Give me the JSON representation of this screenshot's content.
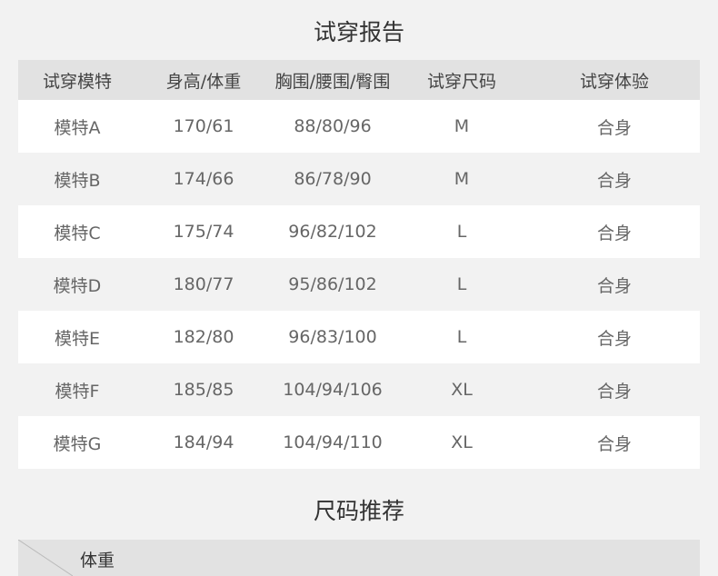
{
  "report": {
    "title": "试穿报告",
    "headers": [
      "试穿模特",
      "身高/体重",
      "胸围/腰围/臀围",
      "试穿尺码",
      "试穿体验"
    ],
    "rows": [
      [
        "模特A",
        "170/61",
        "88/80/96",
        "M",
        "合身"
      ],
      [
        "模特B",
        "174/66",
        "86/78/90",
        "M",
        "合身"
      ],
      [
        "模特C",
        "175/74",
        "96/82/102",
        "L",
        "合身"
      ],
      [
        "模特D",
        "180/77",
        "95/86/102",
        "L",
        "合身"
      ],
      [
        "模特E",
        "182/80",
        "96/83/100",
        "L",
        "合身"
      ],
      [
        "模特F",
        "185/85",
        "104/94/106",
        "XL",
        "合身"
      ],
      [
        "模特G",
        "184/94",
        "104/94/110",
        "XL",
        "合身"
      ]
    ]
  },
  "recommend": {
    "title": "尺码推荐",
    "corner_label": "体重"
  }
}
